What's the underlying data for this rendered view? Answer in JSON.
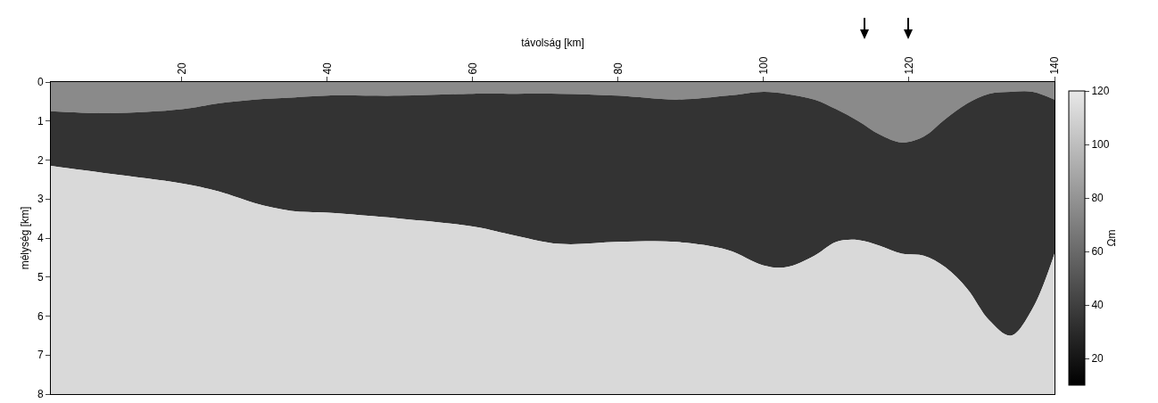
{
  "chart_data": {
    "type": "area",
    "stacked": true,
    "xlabel": "távolság [km]",
    "ylabel": "mélység [km]",
    "clabel": "Ωm",
    "x": [
      2,
      10,
      20,
      25,
      30,
      35,
      40,
      50,
      60,
      65,
      72,
      80,
      88,
      95,
      100,
      103,
      107,
      110,
      113,
      116,
      119,
      122,
      125,
      128,
      131,
      134,
      137,
      140
    ],
    "series": [
      {
        "color": "#8a8a8a",
        "values": [
          0.75,
          0.8,
          0.7,
          0.55,
          0.45,
          0.4,
          0.35,
          0.35,
          0.3,
          0.3,
          0.3,
          0.35,
          0.45,
          0.35,
          0.25,
          0.3,
          0.45,
          0.7,
          1.0,
          1.35,
          1.55,
          1.4,
          0.95,
          0.55,
          0.3,
          0.25,
          0.25,
          0.45
        ]
      },
      {
        "color": "#333333",
        "values": [
          1.4,
          1.55,
          1.9,
          2.25,
          2.65,
          2.9,
          3.0,
          3.15,
          3.4,
          3.6,
          3.85,
          3.75,
          3.65,
          3.95,
          4.45,
          4.45,
          4.0,
          3.4,
          3.05,
          2.85,
          2.85,
          3.05,
          3.8,
          4.75,
          5.8,
          6.25,
          5.55,
          3.95
        ]
      },
      {
        "color": "#d9d9d9",
        "values": [
          5.85,
          5.65,
          5.4,
          5.2,
          4.9,
          4.7,
          4.65,
          4.5,
          4.3,
          4.1,
          3.85,
          3.9,
          3.9,
          3.7,
          3.3,
          3.25,
          3.55,
          3.9,
          3.95,
          3.8,
          3.6,
          3.55,
          3.25,
          2.7,
          1.9,
          1.5,
          2.2,
          3.6
        ]
      }
    ],
    "xlim": [
      2,
      140
    ],
    "xticks": [
      20,
      40,
      60,
      80,
      100,
      120,
      140
    ],
    "ylim": [
      8,
      0
    ],
    "yticks": [
      0,
      1,
      2,
      3,
      4,
      5,
      6,
      7,
      8
    ],
    "clim": [
      10,
      120
    ],
    "cticks": [
      20,
      40,
      60,
      80,
      100,
      120
    ]
  }
}
